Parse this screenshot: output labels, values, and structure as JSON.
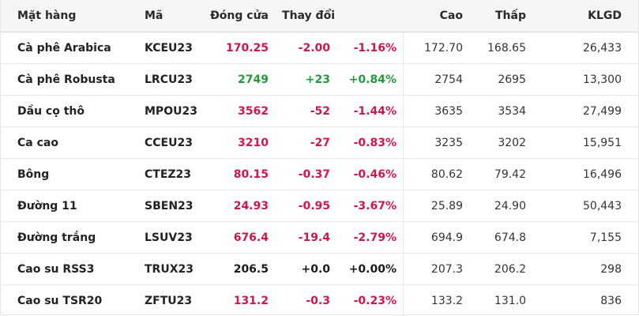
{
  "header": {
    "name": "Mặt hàng",
    "code": "Mã",
    "close": "Đóng cửa",
    "change": "Thay đổi",
    "high": "Cao",
    "low": "Thấp",
    "volume": "KLGD"
  },
  "colors": {
    "up": "#1f9b3a",
    "down": "#d0154b",
    "flat": "#1a1a1a"
  },
  "rows": [
    {
      "name": "Cà phê Arabica",
      "code": "KCEU23",
      "close": "170.25",
      "change": "-2.00",
      "pct": "-1.16%",
      "high": "172.70",
      "low": "168.65",
      "volume": "26,433",
      "dir": "down"
    },
    {
      "name": "Cà phê Robusta",
      "code": "LRCU23",
      "close": "2749",
      "change": "+23",
      "pct": "+0.84%",
      "high": "2754",
      "low": "2695",
      "volume": "13,300",
      "dir": "up"
    },
    {
      "name": "Dầu cọ thô",
      "code": "MPOU23",
      "close": "3562",
      "change": "-52",
      "pct": "-1.44%",
      "high": "3635",
      "low": "3534",
      "volume": "27,499",
      "dir": "down"
    },
    {
      "name": "Ca cao",
      "code": "CCEU23",
      "close": "3210",
      "change": "-27",
      "pct": "-0.83%",
      "high": "3235",
      "low": "3202",
      "volume": "15,951",
      "dir": "down"
    },
    {
      "name": "Bông",
      "code": "CTEZ23",
      "close": "80.15",
      "change": "-0.37",
      "pct": "-0.46%",
      "high": "80.62",
      "low": "79.42",
      "volume": "16,496",
      "dir": "down"
    },
    {
      "name": "Đường 11",
      "code": "SBEN23",
      "close": "24.93",
      "change": "-0.95",
      "pct": "-3.67%",
      "high": "25.89",
      "low": "24.90",
      "volume": "50,443",
      "dir": "down"
    },
    {
      "name": "Đường trắng",
      "code": "LSUV23",
      "close": "676.4",
      "change": "-19.4",
      "pct": "-2.79%",
      "high": "694.9",
      "low": "674.8",
      "volume": "7,155",
      "dir": "down"
    },
    {
      "name": "Cao su RSS3",
      "code": "TRUX23",
      "close": "206.5",
      "change": "+0.0",
      "pct": "+0.00%",
      "high": "207.3",
      "low": "206.2",
      "volume": "298",
      "dir": "flat"
    },
    {
      "name": "Cao su TSR20",
      "code": "ZFTU23",
      "close": "131.2",
      "change": "-0.3",
      "pct": "-0.23%",
      "high": "133.2",
      "low": "131.0",
      "volume": "836",
      "dir": "down"
    }
  ]
}
